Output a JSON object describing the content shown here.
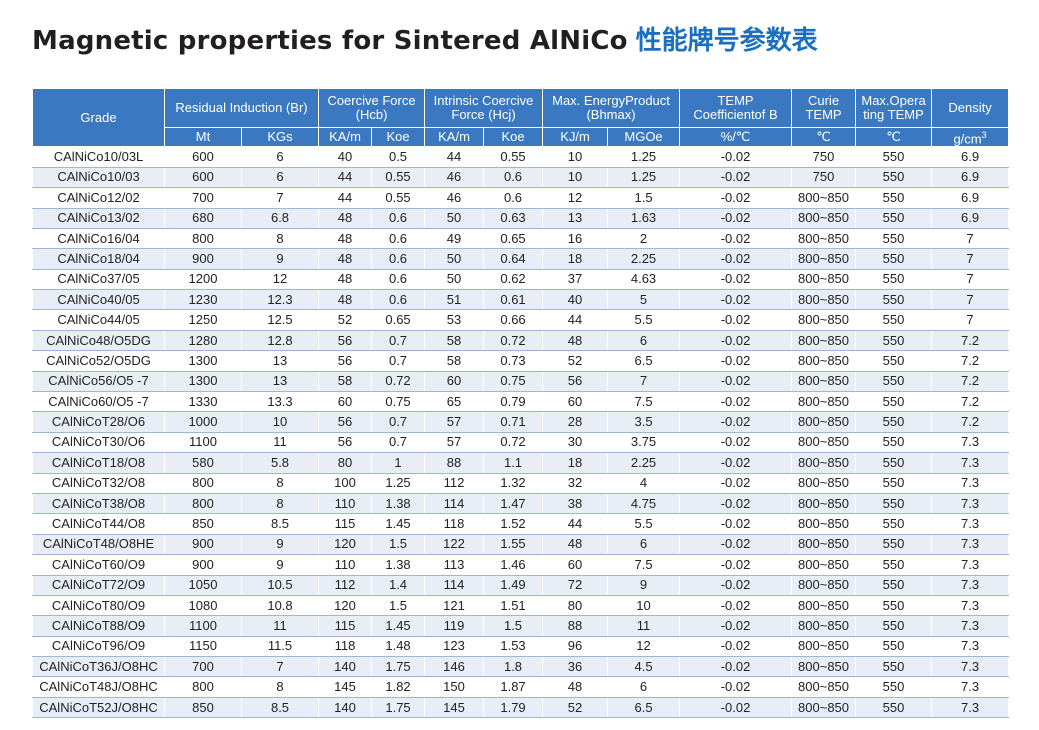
{
  "title": {
    "english": "Magnetic properties for Sintered AlNiCo",
    "chinese": "性能牌号参数表"
  },
  "header": {
    "grade": "Grade",
    "br": "Residual  Induction (Br)",
    "hcb": "Coercive Force (Hcb)",
    "hcj": "Intrinsic Coercive Force (Hcj)",
    "bhmax": "Max. EnergyProduct (Bhmax)",
    "temp_coeff": "TEMP Coefficientof B",
    "curie": "Curie TEMP",
    "max_oper": "Max.Opera ting TEMP",
    "density": "Density",
    "units": {
      "br_mt": "Mt",
      "br_kgs": "KGs",
      "hcb_kam": "KA/m",
      "hcb_koe": "Koe",
      "hcj_kam": "KA/m",
      "hcj_koe": "Koe",
      "bh_kjm": "KJ/m",
      "bh_mgoe": "MGOe",
      "tc_unit": "%/℃",
      "curie_unit": "℃",
      "oper_unit": "℃",
      "density_unit": "g/cm",
      "density_sup": "3"
    }
  },
  "rows": [
    [
      "CAlNiCo10/03L",
      "600",
      "6",
      "40",
      "0.5",
      "44",
      "0.55",
      "10",
      "1.25",
      "-0.02",
      "750",
      "550",
      "6.9"
    ],
    [
      "CAlNiCo10/03",
      "600",
      "6",
      "44",
      "0.55",
      "46",
      "0.6",
      "10",
      "1.25",
      "-0.02",
      "750",
      "550",
      "6.9"
    ],
    [
      "CAlNiCo12/02",
      "700",
      "7",
      "44",
      "0.55",
      "46",
      "0.6",
      "12",
      "1.5",
      "-0.02",
      "800~850",
      "550",
      "6.9"
    ],
    [
      "CAlNiCo13/02",
      "680",
      "6.8",
      "48",
      "0.6",
      "50",
      "0.63",
      "13",
      "1.63",
      "-0.02",
      "800~850",
      "550",
      "6.9"
    ],
    [
      "CAlNiCo16/04",
      "800",
      "8",
      "48",
      "0.6",
      "49",
      "0.65",
      "16",
      "2",
      "-0.02",
      "800~850",
      "550",
      "7"
    ],
    [
      "CAlNiCo18/04",
      "900",
      "9",
      "48",
      "0.6",
      "50",
      "0.64",
      "18",
      "2.25",
      "-0.02",
      "800~850",
      "550",
      "7"
    ],
    [
      "CAlNiCo37/05",
      "1200",
      "12",
      "48",
      "0.6",
      "50",
      "0.62",
      "37",
      "4.63",
      "-0.02",
      "800~850",
      "550",
      "7"
    ],
    [
      "CAlNiCo40/05",
      "1230",
      "12.3",
      "48",
      "0.6",
      "51",
      "0.61",
      "40",
      "5",
      "-0.02",
      "800~850",
      "550",
      "7"
    ],
    [
      "CAlNiCo44/05",
      "1250",
      "12.5",
      "52",
      "0.65",
      "53",
      "0.66",
      "44",
      "5.5",
      "-0.02",
      "800~850",
      "550",
      "7"
    ],
    [
      "CAlNiCo48/O5DG",
      "1280",
      "12.8",
      "56",
      "0.7",
      "58",
      "0.72",
      "48",
      "6",
      "-0.02",
      "800~850",
      "550",
      "7.2"
    ],
    [
      "CAlNiCo52/O5DG",
      "1300",
      "13",
      "56",
      "0.7",
      "58",
      "0.73",
      "52",
      "6.5",
      "-0.02",
      "800~850",
      "550",
      "7.2"
    ],
    [
      "CAlNiCo56/O5  -7",
      "1300",
      "13",
      "58",
      "0.72",
      "60",
      "0.75",
      "56",
      "7",
      "-0.02",
      "800~850",
      "550",
      "7.2"
    ],
    [
      "CAlNiCo60/O5  -7",
      "1330",
      "13.3",
      "60",
      "0.75",
      "65",
      "0.79",
      "60",
      "7.5",
      "-0.02",
      "800~850",
      "550",
      "7.2"
    ],
    [
      "CAlNiCoT28/O6",
      "1000",
      "10",
      "56",
      "0.7",
      "57",
      "0.71",
      "28",
      "3.5",
      "-0.02",
      "800~850",
      "550",
      "7.2"
    ],
    [
      "CAlNiCoT30/O6",
      "1100",
      "11",
      "56",
      "0.7",
      "57",
      "0.72",
      "30",
      "3.75",
      "-0.02",
      "800~850",
      "550",
      "7.3"
    ],
    [
      "CAlNiCoT18/O8",
      "580",
      "5.8",
      "80",
      "1",
      "88",
      "1.1",
      "18",
      "2.25",
      "-0.02",
      "800~850",
      "550",
      "7.3"
    ],
    [
      "CAlNiCoT32/O8",
      "800",
      "8",
      "100",
      "1.25",
      "112",
      "1.32",
      "32",
      "4",
      "-0.02",
      "800~850",
      "550",
      "7.3"
    ],
    [
      "CAlNiCoT38/O8",
      "800",
      "8",
      "110",
      "1.38",
      "114",
      "1.47",
      "38",
      "4.75",
      "-0.02",
      "800~850",
      "550",
      "7.3"
    ],
    [
      "CAlNiCoT44/O8",
      "850",
      "8.5",
      "115",
      "1.45",
      "118",
      "1.52",
      "44",
      "5.5",
      "-0.02",
      "800~850",
      "550",
      "7.3"
    ],
    [
      "CAlNiCoT48/O8HE",
      "900",
      "9",
      "120",
      "1.5",
      "122",
      "1.55",
      "48",
      "6",
      "-0.02",
      "800~850",
      "550",
      "7.3"
    ],
    [
      "CAlNiCoT60/O9",
      "900",
      "9",
      "110",
      "1.38",
      "113",
      "1.46",
      "60",
      "7.5",
      "-0.02",
      "800~850",
      "550",
      "7.3"
    ],
    [
      "CAlNiCoT72/O9",
      "1050",
      "10.5",
      "112",
      "1.4",
      "114",
      "1.49",
      "72",
      "9",
      "-0.02",
      "800~850",
      "550",
      "7.3"
    ],
    [
      "CAlNiCoT80/O9",
      "1080",
      "10.8",
      "120",
      "1.5",
      "121",
      "1.51",
      "80",
      "10",
      "-0.02",
      "800~850",
      "550",
      "7.3"
    ],
    [
      "CAlNiCoT88/O9",
      "1100",
      "11",
      "115",
      "1.45",
      "119",
      "1.5",
      "88",
      "11",
      "-0.02",
      "800~850",
      "550",
      "7.3"
    ],
    [
      "CAlNiCoT96/O9",
      "1150",
      "11.5",
      "118",
      "1.48",
      "123",
      "1.53",
      "96",
      "12",
      "-0.02",
      "800~850",
      "550",
      "7.3"
    ],
    [
      "CAlNiCoT36J/O8HC",
      "700",
      "7",
      "140",
      "1.75",
      "146",
      "1.8",
      "36",
      "4.5",
      "-0.02",
      "800~850",
      "550",
      "7.3"
    ],
    [
      "CAlNiCoT48J/O8HC",
      "800",
      "8",
      "145",
      "1.82",
      "150",
      "1.87",
      "48",
      "6",
      "-0.02",
      "800~850",
      "550",
      "7.3"
    ],
    [
      "CAlNiCoT52J/O8HC",
      "850",
      "8.5",
      "140",
      "1.75",
      "145",
      "1.79",
      "52",
      "6.5",
      "-0.02",
      "800~850",
      "550",
      "7.3"
    ]
  ]
}
